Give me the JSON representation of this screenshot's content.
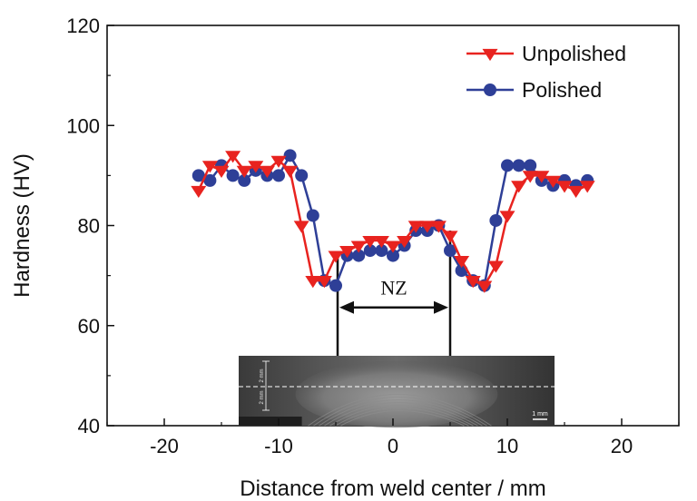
{
  "chart_data": {
    "type": "line",
    "title": "",
    "xlabel": "Distance from weld center / mm",
    "ylabel": "Hardness (HV)",
    "xlim": [
      -25,
      25
    ],
    "ylim": [
      40,
      120
    ],
    "x_ticks": [
      -20,
      -10,
      0,
      10,
      20
    ],
    "y_ticks": [
      40,
      60,
      80,
      100,
      120
    ],
    "x_tick_labels": [
      "-20",
      "-10",
      "0",
      "10",
      "20"
    ],
    "y_tick_labels": [
      "40",
      "60",
      "80",
      "100",
      "120"
    ],
    "legend_position": "top-right",
    "grid": false,
    "series": [
      {
        "name": "Unpolished",
        "color": "#e8231f",
        "marker": "triangle-down",
        "points": [
          [
            -17,
            87
          ],
          [
            -16,
            92
          ],
          [
            -15,
            91
          ],
          [
            -14,
            94
          ],
          [
            -13,
            91
          ],
          [
            -12,
            92
          ],
          [
            -11,
            91
          ],
          [
            -10,
            93
          ],
          [
            -9,
            91
          ],
          [
            -8,
            80
          ],
          [
            -7,
            69
          ],
          [
            -6,
            69
          ],
          [
            -5,
            74
          ],
          [
            -4,
            75
          ],
          [
            -3,
            76
          ],
          [
            -2,
            77
          ],
          [
            -1,
            77
          ],
          [
            0,
            76
          ],
          [
            1,
            77
          ],
          [
            2,
            80
          ],
          [
            3,
            80
          ],
          [
            4,
            80
          ],
          [
            5,
            78
          ],
          [
            6,
            73
          ],
          [
            7,
            69
          ],
          [
            8,
            68
          ],
          [
            9,
            72
          ],
          [
            10,
            82
          ],
          [
            11,
            88
          ],
          [
            12,
            90
          ],
          [
            13,
            90
          ],
          [
            14,
            89
          ],
          [
            15,
            88
          ],
          [
            16,
            87
          ],
          [
            17,
            88
          ]
        ]
      },
      {
        "name": "Polished",
        "color": "#2e3f97",
        "marker": "circle",
        "points": [
          [
            -17,
            90
          ],
          [
            -16,
            89
          ],
          [
            -15,
            92
          ],
          [
            -14,
            90
          ],
          [
            -13,
            89
          ],
          [
            -12,
            91
          ],
          [
            -11,
            90
          ],
          [
            -10,
            90
          ],
          [
            -9,
            94
          ],
          [
            -8,
            90
          ],
          [
            -7,
            82
          ],
          [
            -6,
            69
          ],
          [
            -5,
            68
          ],
          [
            -4,
            74
          ],
          [
            -3,
            74
          ],
          [
            -2,
            75
          ],
          [
            -1,
            75
          ],
          [
            0,
            74
          ],
          [
            1,
            76
          ],
          [
            2,
            79
          ],
          [
            3,
            79
          ],
          [
            4,
            80
          ],
          [
            5,
            75
          ],
          [
            6,
            71
          ],
          [
            7,
            69
          ],
          [
            8,
            68
          ],
          [
            9,
            81
          ],
          [
            10,
            92
          ],
          [
            11,
            92
          ],
          [
            12,
            92
          ],
          [
            13,
            89
          ],
          [
            14,
            88
          ],
          [
            15,
            89
          ],
          [
            16,
            88
          ],
          [
            17,
            89
          ]
        ]
      }
    ],
    "annotations": [
      {
        "text": "NZ",
        "x_range": [
          -5,
          5
        ],
        "y": 62
      }
    ],
    "inset": {
      "description_visible_text": [
        "2 mm",
        "2 mm",
        "1 mm"
      ]
    }
  }
}
